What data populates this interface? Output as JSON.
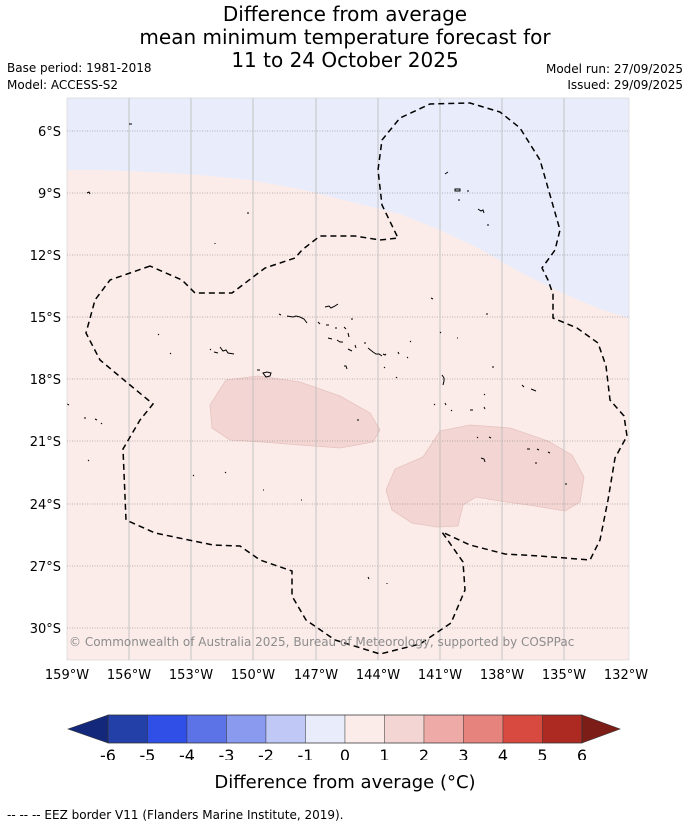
{
  "title": {
    "line1": "Difference from average",
    "line2": "mean minimum temperature forecast for",
    "line3": "11 to 24 October 2025"
  },
  "meta": {
    "base_period": "Base period: 1981-2018",
    "model": "Model: ACCESS-S2",
    "model_run": "Model run: 27/09/2025",
    "issued": "Issued: 29/09/2025"
  },
  "map": {
    "lat_labels": [
      "6°S",
      "9°S",
      "12°S",
      "15°S",
      "18°S",
      "21°S",
      "24°S",
      "27°S",
      "30°S"
    ],
    "lon_labels": [
      "159°W",
      "156°W",
      "153°W",
      "150°W",
      "147°W",
      "144°W",
      "141°W",
      "138°W",
      "135°W",
      "132°W"
    ],
    "copyright": "© Commonwealth of Australia 2025, Bureau of Meteorology, supported by COSPPac",
    "colors": {
      "minus1_0": "#e9ecfb",
      "0_1": "#fbecea",
      "1_2": "#f3d6d3",
      "eez_line": "#000000"
    }
  },
  "colorbar": {
    "labels": [
      "-6",
      "-5",
      "-4",
      "-3",
      "-2",
      "-1",
      "0",
      "1",
      "2",
      "3",
      "4",
      "5",
      "6"
    ],
    "colors": [
      "#233fa8",
      "#2f4fe6",
      "#5c73e8",
      "#8a9aee",
      "#c0c8f5",
      "#e9ecfb",
      "#fbecea",
      "#f3d6d3",
      "#eeaaa6",
      "#e6837c",
      "#d84a40",
      "#ad2a22"
    ],
    "under_color": "#13287a",
    "over_color": "#7d1d17",
    "title": "Difference from average (°C)"
  },
  "footer": "-- -- -- EEZ border V11 (Flanders Marine Institute, 2019)."
}
